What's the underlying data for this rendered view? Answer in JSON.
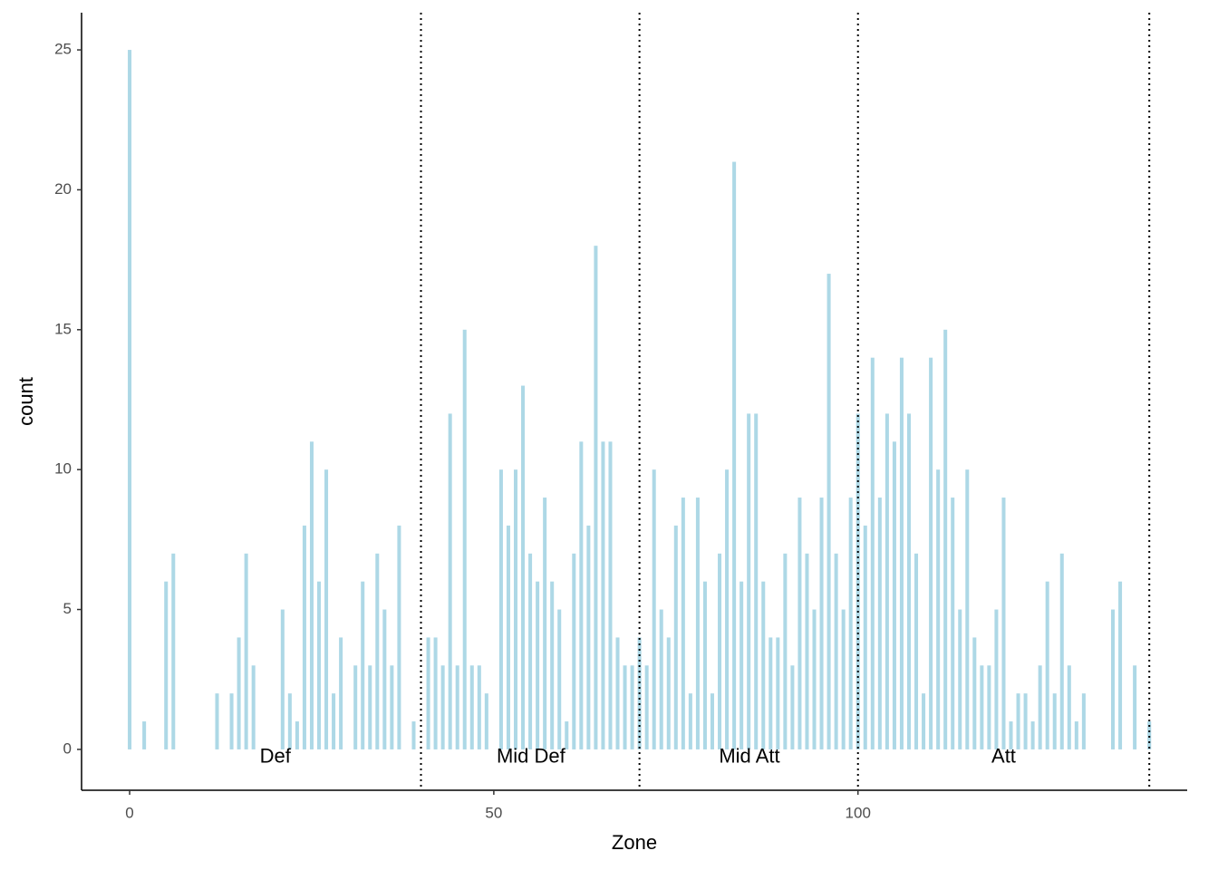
{
  "chart_data": {
    "type": "bar",
    "x_label": "Zone",
    "y_label": "count",
    "x": [
      0,
      2,
      5,
      6,
      12,
      14,
      15,
      16,
      17,
      21,
      22,
      23,
      24,
      25,
      26,
      27,
      28,
      29,
      31,
      32,
      33,
      34,
      35,
      36,
      37,
      39,
      41,
      42,
      43,
      44,
      45,
      46,
      47,
      48,
      49,
      51,
      52,
      53,
      54,
      55,
      56,
      57,
      58,
      59,
      60,
      61,
      62,
      63,
      64,
      65,
      66,
      67,
      68,
      69,
      70,
      71,
      72,
      73,
      74,
      75,
      76,
      77,
      78,
      79,
      80,
      81,
      82,
      83,
      84,
      85,
      86,
      87,
      88,
      89,
      90,
      91,
      92,
      93,
      94,
      95,
      96,
      97,
      98,
      99,
      100,
      101,
      102,
      103,
      104,
      105,
      106,
      107,
      108,
      109,
      110,
      111,
      112,
      113,
      114,
      115,
      116,
      117,
      118,
      119,
      120,
      121,
      122,
      123,
      124,
      125,
      126,
      127,
      128,
      129,
      130,
      131,
      135,
      136,
      138,
      140
    ],
    "values": [
      25,
      1,
      6,
      7,
      2,
      2,
      4,
      7,
      3,
      5,
      2,
      1,
      8,
      11,
      6,
      10,
      2,
      4,
      3,
      6,
      3,
      7,
      5,
      3,
      8,
      1,
      4,
      4,
      3,
      12,
      3,
      15,
      3,
      3,
      2,
      10,
      8,
      10,
      13,
      7,
      6,
      9,
      6,
      5,
      1,
      7,
      11,
      8,
      18,
      11,
      11,
      4,
      3,
      3,
      4,
      3,
      10,
      5,
      4,
      8,
      9,
      2,
      9,
      6,
      2,
      7,
      10,
      21,
      6,
      12,
      12,
      6,
      4,
      4,
      7,
      3,
      9,
      7,
      5,
      9,
      17,
      7,
      5,
      9,
      12,
      8,
      14,
      9,
      12,
      11,
      14,
      12,
      7,
      2,
      14,
      10,
      15,
      9,
      5,
      10,
      4,
      3,
      3,
      5,
      9,
      1,
      2,
      2,
      1,
      3,
      6,
      2,
      7,
      3,
      1,
      2,
      5,
      6,
      3,
      1
    ],
    "color": "#add8e6",
    "bar_width": 0.5,
    "xlim": [
      -6.6,
      145.2
    ],
    "ylim": [
      -1.46,
      26.33
    ],
    "xticks": [
      0,
      50,
      100
    ],
    "yticks": [
      0,
      5,
      10,
      15,
      20,
      25
    ],
    "vlines": [
      40,
      70,
      100,
      140
    ],
    "annotations": [
      {
        "text": "Def",
        "x": 20,
        "y": -0.29
      },
      {
        "text": "Mid Def",
        "x": 55.1,
        "y": -0.29
      },
      {
        "text": "Mid Att",
        "x": 85.1,
        "y": -0.29
      },
      {
        "text": "Att",
        "x": 120,
        "y": -0.29
      }
    ]
  }
}
